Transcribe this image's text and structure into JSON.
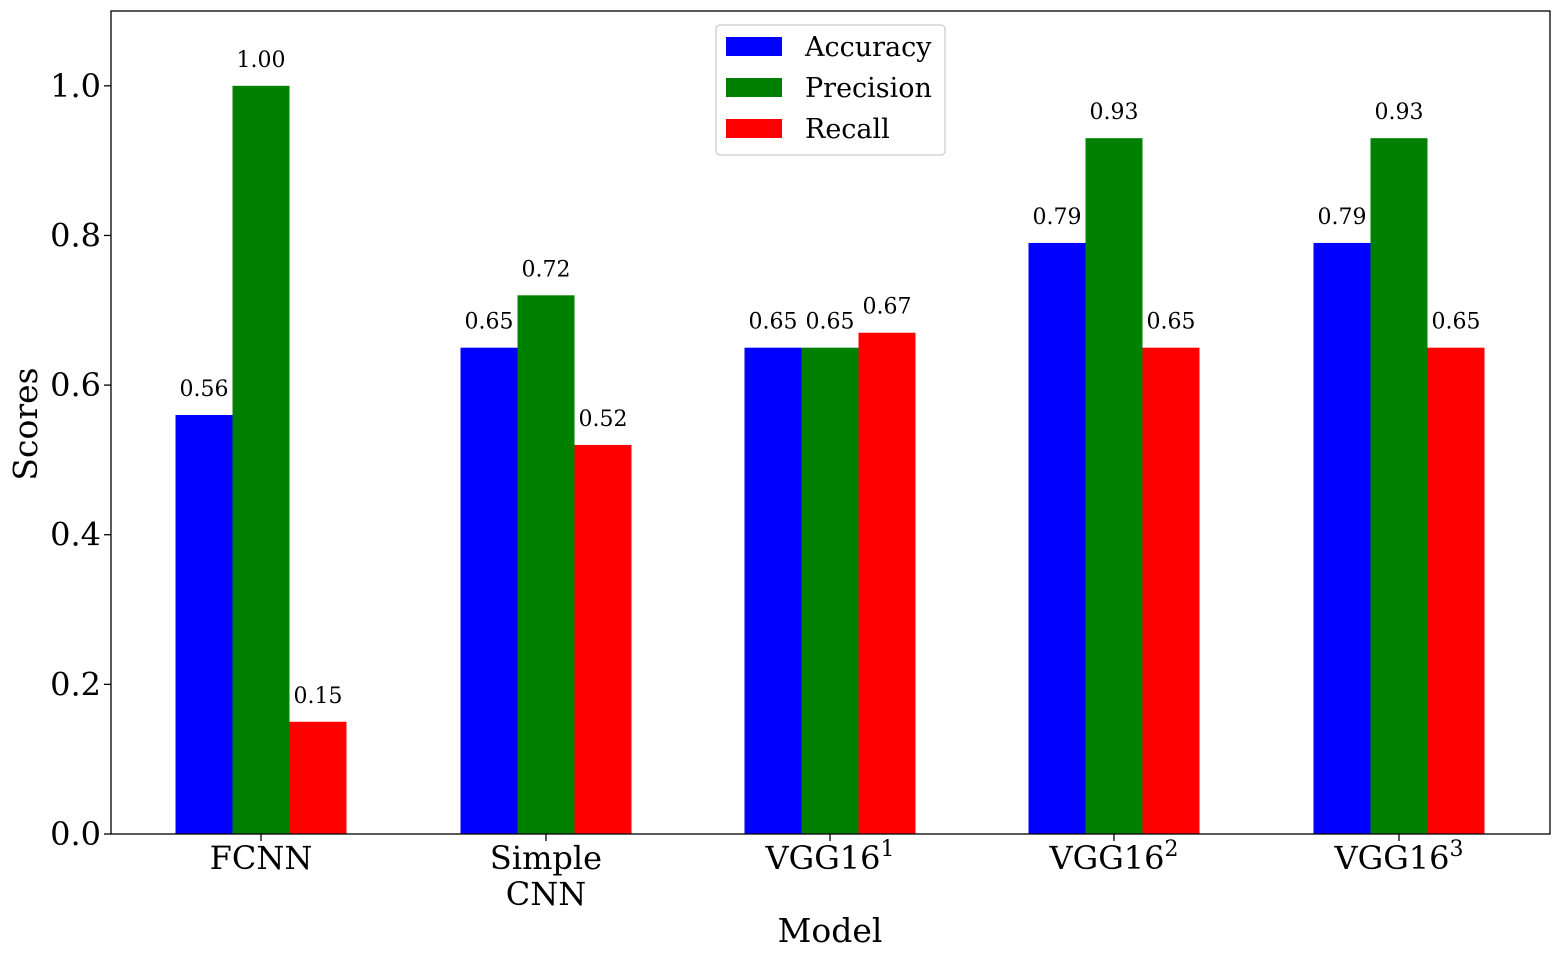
{
  "chart_data": {
    "type": "bar",
    "categories": [
      "FCNN",
      "Simple\nCNN",
      "VGG16^1",
      "VGG16^2",
      "VGG16^3"
    ],
    "series": [
      {
        "name": "Accuracy",
        "color": "#0000ff",
        "values": [
          0.56,
          0.65,
          0.65,
          0.79,
          0.79
        ]
      },
      {
        "name": "Precision",
        "color": "#008000",
        "values": [
          1.0,
          0.72,
          0.65,
          0.93,
          0.93
        ]
      },
      {
        "name": "Recall",
        "color": "#ff0000",
        "values": [
          0.15,
          0.52,
          0.67,
          0.65,
          0.65
        ]
      }
    ],
    "value_labels": [
      [
        "0.56",
        "1.00",
        "0.15"
      ],
      [
        "0.65",
        "0.72",
        "0.52"
      ],
      [
        "0.65",
        "0.65",
        "0.67"
      ],
      [
        "0.79",
        "0.93",
        "0.65"
      ],
      [
        "0.79",
        "0.93",
        "0.65"
      ]
    ],
    "xlabel": "Model",
    "ylabel": "Scores",
    "ylim": [
      0,
      1.1
    ],
    "yticks": [
      "0.0",
      "0.2",
      "0.4",
      "0.6",
      "0.8",
      "1.0"
    ],
    "grid": false,
    "legend_position": "top-center"
  }
}
